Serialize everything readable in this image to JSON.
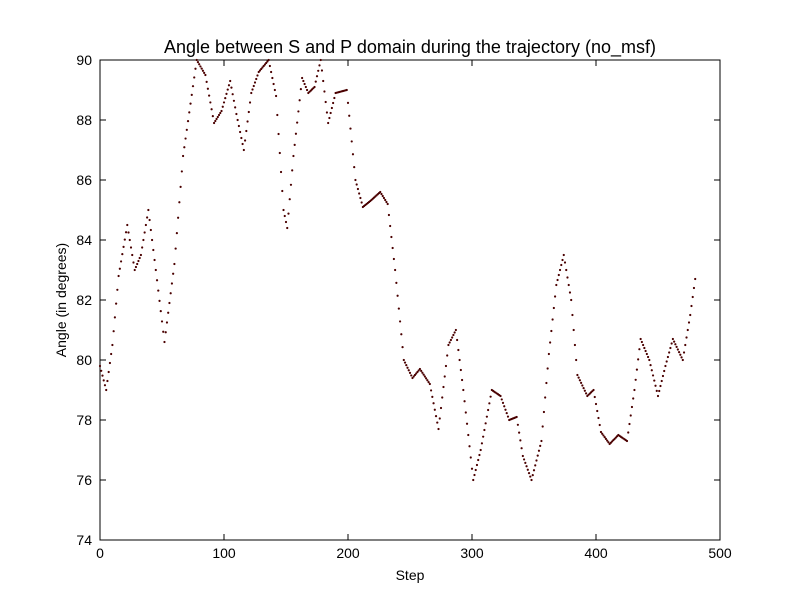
{
  "chart_data": {
    "type": "scatter",
    "title": "Angle between S and P domain during the trajectory (no_msf)",
    "xlabel": "Step",
    "ylabel": "Angle (in degrees)",
    "xlim": [
      0,
      500
    ],
    "ylim": [
      74,
      90
    ],
    "xticks": [
      0,
      100,
      200,
      300,
      400,
      500
    ],
    "yticks": [
      74,
      76,
      78,
      80,
      82,
      84,
      86,
      88,
      90
    ],
    "grid": false,
    "legend": "none",
    "marker_color": "#4a0000",
    "series": [
      {
        "x": [
          0,
          5,
          10,
          15,
          22,
          28,
          33,
          39,
          45,
          52,
          60,
          67,
          78,
          85,
          92,
          98,
          105,
          110,
          116,
          122,
          128,
          136,
          142,
          148,
          151,
          156,
          163,
          168,
          173,
          178,
          184,
          190,
          199,
          206,
          212,
          218,
          226,
          232,
          238,
          245,
          252,
          258,
          266,
          273,
          281,
          287,
          293,
          301,
          307,
          316,
          323,
          330,
          336,
          341,
          348,
          356,
          362,
          368,
          374,
          380,
          385,
          393,
          398,
          404,
          411,
          418,
          425,
          431,
          436,
          443,
          450,
          456,
          462,
          470,
          476,
          480
        ],
        "y": [
          79.8,
          79.0,
          80.5,
          82.8,
          84.5,
          83.0,
          83.5,
          85.0,
          83.0,
          80.6,
          83.2,
          86.8,
          90.0,
          89.5,
          87.9,
          88.3,
          89.3,
          88.2,
          87.0,
          88.9,
          89.6,
          90.0,
          88.8,
          85.0,
          84.4,
          86.8,
          89.4,
          88.9,
          89.1,
          90.0,
          87.9,
          88.9,
          89.0,
          86.0,
          85.1,
          85.3,
          85.6,
          85.2,
          83.0,
          80.0,
          79.4,
          79.7,
          79.2,
          77.7,
          80.5,
          81.0,
          79.0,
          76.0,
          77.0,
          79.0,
          78.8,
          78.0,
          78.1,
          76.8,
          76.0,
          77.3,
          80.2,
          82.5,
          83.5,
          82.0,
          79.5,
          78.8,
          79.0,
          77.6,
          77.2,
          77.5,
          77.3,
          79.0,
          80.7,
          80.0,
          78.8,
          79.8,
          80.7,
          80.0,
          81.5,
          82.7
        ]
      }
    ]
  }
}
